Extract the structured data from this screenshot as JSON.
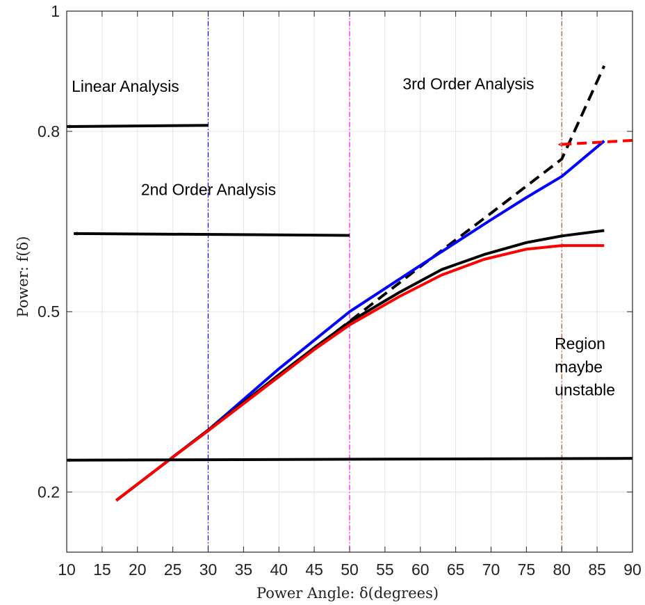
{
  "chart_data": {
    "type": "line",
    "xlabel": "Power Angle: δ(degrees)",
    "ylabel": "Power: f(δ)",
    "xlim": [
      10,
      90
    ],
    "ylim": [
      0.1,
      1.0
    ],
    "x_ticks": [
      10,
      15,
      20,
      25,
      30,
      35,
      40,
      45,
      50,
      55,
      60,
      65,
      70,
      75,
      80,
      85,
      90
    ],
    "y_ticks": [
      0.2,
      0.5,
      0.8,
      1.0
    ],
    "y_tick_labels": [
      "0.2",
      "0.5",
      "0.8",
      "1"
    ],
    "grid": true,
    "series": [
      {
        "color": "#000000",
        "style": "dashed",
        "x": [
          17,
          24,
          30,
          40,
          50,
          60,
          70,
          80,
          86
        ],
        "y": [
          0.186,
          0.249,
          0.303,
          0.394,
          0.484,
          0.575,
          0.664,
          0.754,
          0.909
        ]
      },
      {
        "color": "#0000ff",
        "style": "solid",
        "x": [
          17,
          24,
          30,
          40,
          50,
          60,
          70,
          75,
          80,
          86
        ],
        "y": [
          0.186,
          0.249,
          0.303,
          0.405,
          0.5,
          0.577,
          0.653,
          0.69,
          0.725,
          0.784
        ]
      },
      {
        "color": "#000000",
        "style": "solid",
        "x": [
          17,
          24,
          30,
          40,
          45,
          50,
          57,
          63,
          69,
          75,
          80,
          86
        ],
        "y": [
          0.186,
          0.249,
          0.303,
          0.395,
          0.44,
          0.483,
          0.532,
          0.57,
          0.595,
          0.615,
          0.626,
          0.635
        ]
      },
      {
        "color": "#ff0000",
        "style": "solid",
        "x": [
          17,
          24,
          30,
          40,
          45,
          50,
          57,
          63,
          69,
          75,
          80,
          86
        ],
        "y": [
          0.186,
          0.249,
          0.302,
          0.392,
          0.437,
          0.478,
          0.525,
          0.561,
          0.587,
          0.604,
          0.61,
          0.61
        ]
      }
    ],
    "vertical_lines": [
      {
        "x": 30,
        "color": "#0000ff"
      },
      {
        "x": 50,
        "color": "#ff00ff"
      },
      {
        "x": 80,
        "color": "#a0522d"
      }
    ],
    "arrows": [
      {
        "from": [
          30,
          0.81
        ],
        "to": [
          10,
          0.808
        ],
        "color": "#000000",
        "style": "solid"
      },
      {
        "from": [
          50,
          0.627
        ],
        "to": [
          11,
          0.63
        ],
        "color": "#000000",
        "style": "solid"
      },
      {
        "from": [
          90,
          0.256
        ],
        "to": [
          10,
          0.253
        ],
        "color": "#000000",
        "style": "solid"
      },
      {
        "from": [
          90,
          0.785
        ],
        "to": [
          79.5,
          0.778
        ],
        "color": "#ff0000",
        "style": "dashed"
      }
    ],
    "annotations": [
      {
        "text": "Linear Analysis",
        "x": 10.7,
        "y": 0.866
      },
      {
        "text": "2nd Order Analysis",
        "x": 20.5,
        "y": 0.694
      },
      {
        "text": "3rd Order Analysis",
        "x": 57.5,
        "y": 0.87
      },
      {
        "text": "Region",
        "x": 79,
        "y": 0.438
      },
      {
        "text": "maybe",
        "x": 79,
        "y": 0.399
      },
      {
        "text": "unstable",
        "x": 79,
        "y": 0.361
      }
    ]
  }
}
